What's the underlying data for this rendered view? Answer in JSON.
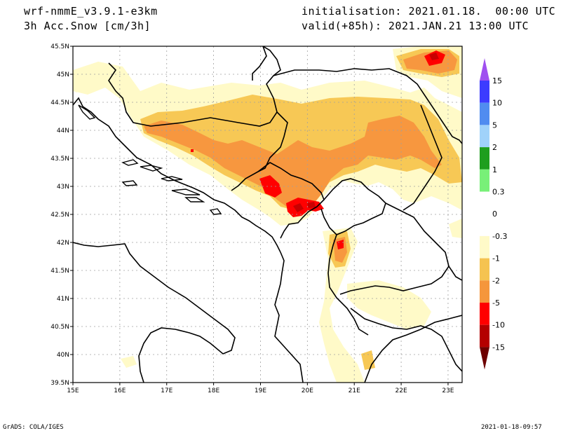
{
  "header": {
    "model": "wrf-nmmE_v3.9.1-e3km",
    "field": "3h Acc.Snow [cm/3h]",
    "initialisation": "initialisation: 2021.01.18.  00:00 UTC",
    "valid": "valid(+85h): 2021.JAN.21 13:00 UTC"
  },
  "footer": {
    "credit": "GrADS: COLA/IGES",
    "timestamp": "2021-01-18-09:57"
  },
  "map": {
    "lon_range": [
      15,
      23.3
    ],
    "lat_range": [
      39.5,
      45.5
    ],
    "lon_ticks": [
      "15E",
      "16E",
      "17E",
      "18E",
      "19E",
      "20E",
      "21E",
      "22E",
      "23E"
    ],
    "lat_ticks": [
      "45.5N",
      "45N",
      "44.5N",
      "44N",
      "43.5N",
      "43N",
      "42.5N",
      "42N",
      "41.5N",
      "41N",
      "40.5N",
      "40N",
      "39.5N"
    ]
  },
  "legend": {
    "labels": [
      "15",
      "10",
      "5",
      "2",
      "1",
      "0.3",
      "0",
      "-0.3",
      "-1",
      "-2",
      "-5",
      "-10",
      "-15"
    ],
    "colors": [
      "#3c3cff",
      "#508cf0",
      "#a0d2fa",
      "#1e9e1e",
      "#78f078",
      "#ffffff",
      "#ffffff",
      "#fffac8",
      "#f5c350",
      "#f5963c",
      "#ff0000",
      "#b40000",
      "#8c0000"
    ],
    "top_arrow_color": "#a050f0",
    "bottom_arrow_color": "#6e0000"
  },
  "colors": {
    "light": "#fffac8",
    "yellow": "#f7c855",
    "orange": "#f7973f",
    "red": "#ff0000",
    "darkred": "#c80000"
  }
}
